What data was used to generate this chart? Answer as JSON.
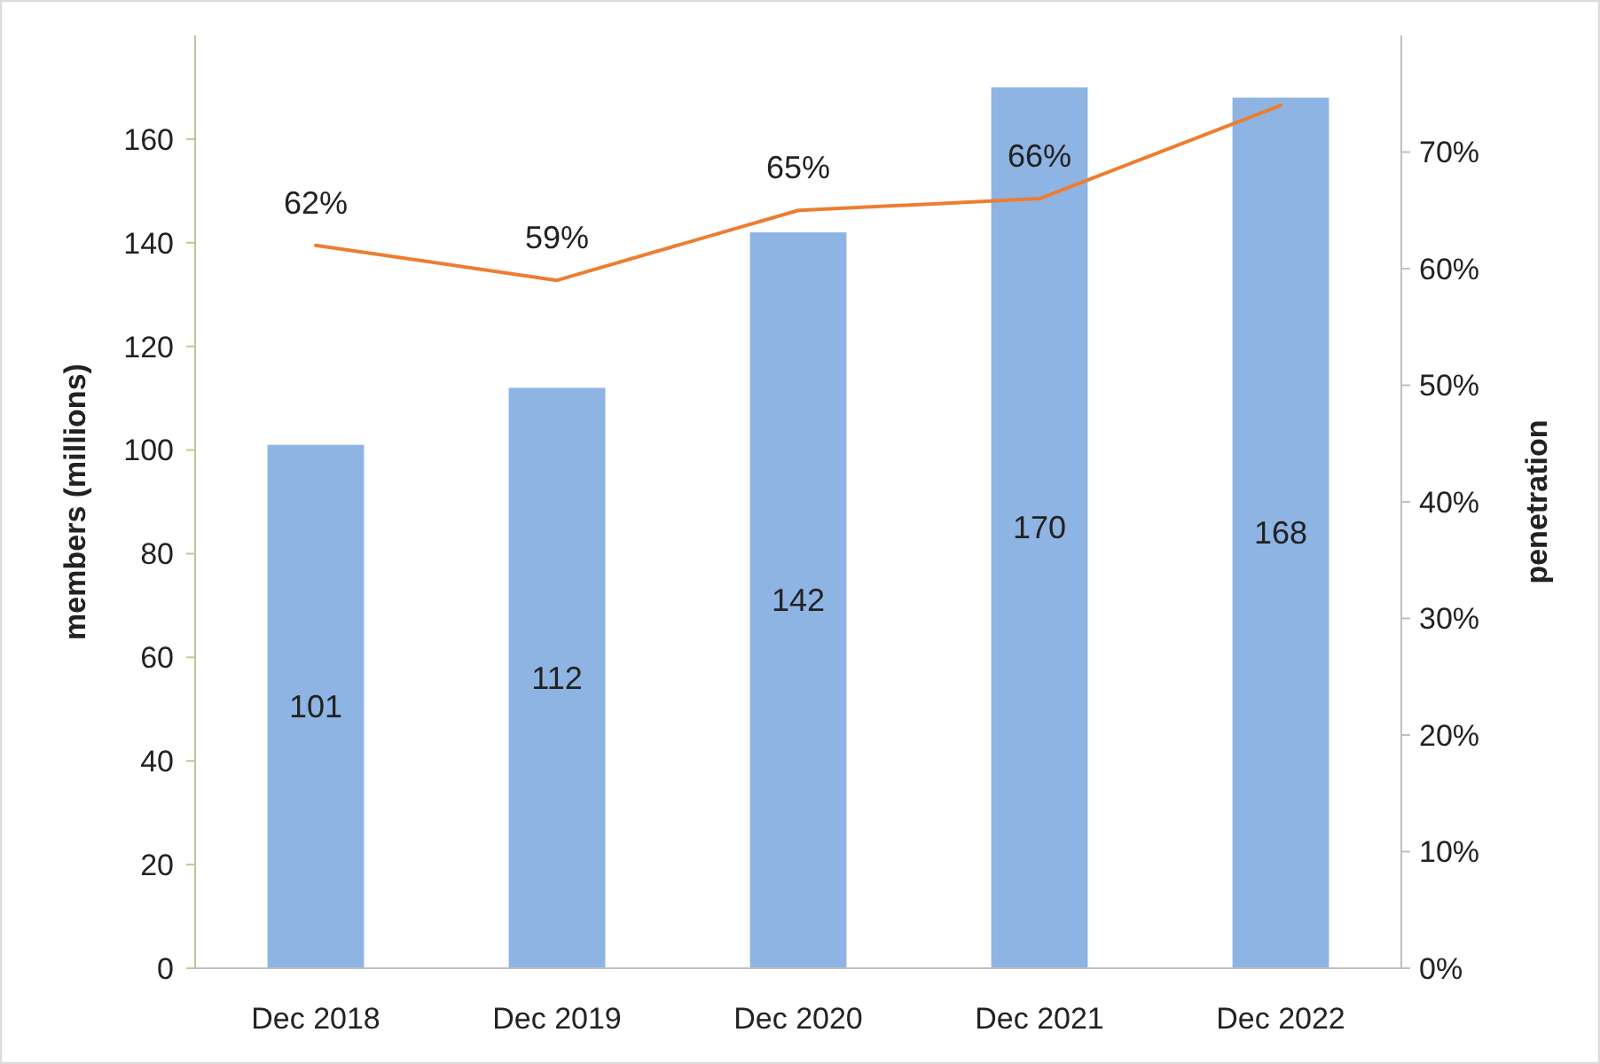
{
  "chart_data": {
    "type": "bar",
    "ylabel": "members (millions)",
    "y2label": "penetration",
    "categories": [
      "Dec 2018",
      "Dec 2019",
      "Dec 2020",
      "Dec 2021",
      "Dec 2022"
    ],
    "series": [
      {
        "color": "#8eb4e3",
        "values": [
          101,
          112,
          142,
          170,
          168
        ],
        "value_labels": [
          "101",
          "112",
          "142",
          "170",
          "168"
        ]
      },
      {
        "type": "line",
        "axis": "y2",
        "color": "#ed7d31",
        "values": [
          62,
          59,
          65,
          66,
          74
        ],
        "value_labels": [
          "62%",
          "59%",
          "65%",
          "66%",
          null
        ]
      }
    ],
    "ylim": [
      0,
      180
    ],
    "yticks": [
      0,
      20,
      40,
      60,
      80,
      100,
      120,
      140,
      160
    ],
    "y2lim": [
      0,
      80
    ],
    "y2ticks": [
      {
        "value": 0,
        "label": "0%"
      },
      {
        "value": 10,
        "label": "10%"
      },
      {
        "value": 20,
        "label": "20%"
      },
      {
        "value": 30,
        "label": "30%"
      },
      {
        "value": 40,
        "label": "40%"
      },
      {
        "value": 50,
        "label": "50%"
      },
      {
        "value": 60,
        "label": "60%"
      },
      {
        "value": 70,
        "label": "70%"
      }
    ],
    "marker": "none",
    "grid": false
  }
}
